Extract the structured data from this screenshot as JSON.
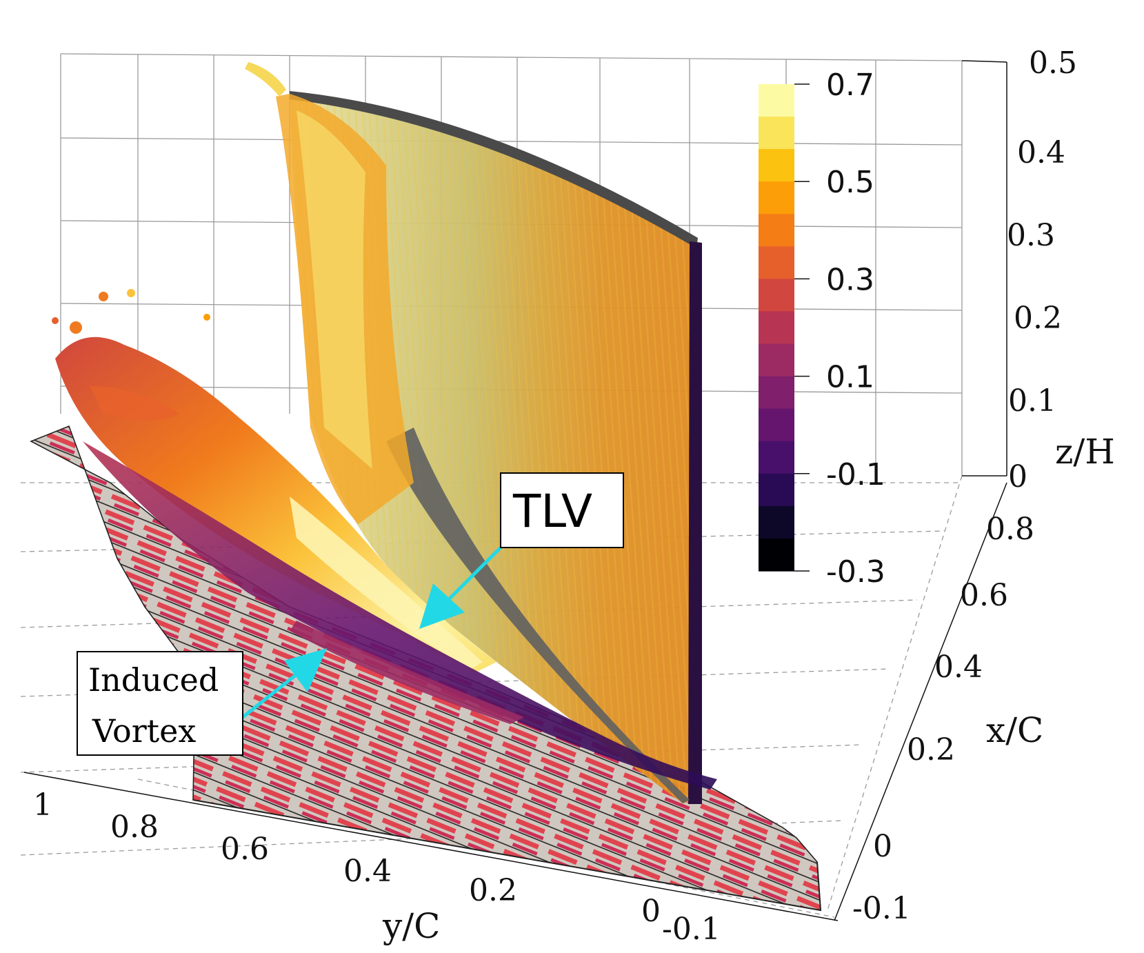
{
  "title": "",
  "colorbar": {
    "labels": [
      "0.7",
      "0.5",
      "0.3",
      "0.1",
      "-0.1",
      "-0.3"
    ],
    "colors": [
      "#fcfba4",
      "#f9e45a",
      "#fbc20f",
      "#fb9e07",
      "#f57d15",
      "#e6602b",
      "#d1463f",
      "#b73553",
      "#9c2a63",
      "#801f6c",
      "#65156e",
      "#48106a",
      "#290b55",
      "#0d0828",
      "#000004"
    ]
  },
  "axes": {
    "z": {
      "title": "z/H",
      "ticks": [
        "0.5",
        "0.4",
        "0.3",
        "0.2",
        "0.1",
        "0"
      ]
    },
    "x": {
      "title": "x/C",
      "ticks": [
        "0.8",
        "0.6",
        "0.4",
        "0.2",
        "0",
        "-0.1"
      ]
    },
    "y": {
      "title": "y/C",
      "ticks": [
        "1",
        "0.8",
        "0.6",
        "0.4",
        "0.2",
        "0",
        "-0.1"
      ]
    }
  },
  "callouts": {
    "tlv": "TLV",
    "induced_line1": "Induced",
    "induced_line2": "Vortex"
  },
  "arrow_color": "#22d8e6"
}
